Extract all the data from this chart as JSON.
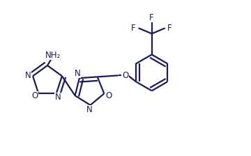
{
  "bg_color": "#ffffff",
  "line_color": "#1a1a5e",
  "line_width": 1.6,
  "font_size": 8.5,
  "fig_width": 3.6,
  "fig_height": 2.24,
  "dpi": 100,
  "xlim": [
    0,
    3.6
  ],
  "ylim": [
    0,
    2.24
  ]
}
